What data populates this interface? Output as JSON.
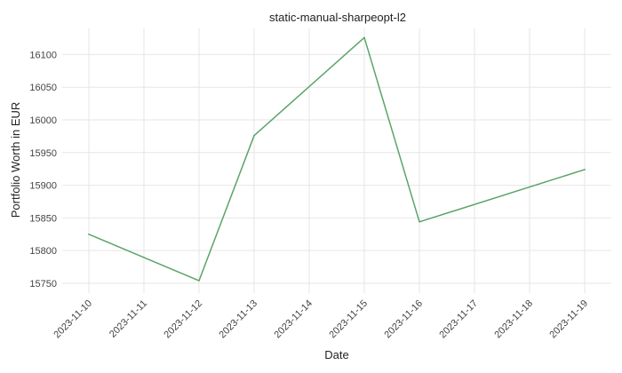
{
  "chart_data": {
    "type": "line",
    "title": "static-manual-sharpeopt-l2",
    "xlabel": "Date",
    "ylabel": "Portfolio Worth in EUR",
    "x_ticks": [
      "2023-11-10",
      "2023-11-11",
      "2023-11-12",
      "2023-11-13",
      "2023-11-14",
      "2023-11-15",
      "2023-11-16",
      "2023-11-17",
      "2023-11-18",
      "2023-11-19"
    ],
    "y_ticks": [
      15750,
      15800,
      15850,
      15900,
      15950,
      16000,
      16050,
      16100
    ],
    "ylim": [
      15735,
      16140
    ],
    "grid": true,
    "series": [
      {
        "color": "#5aa469",
        "points": [
          {
            "x": "2023-11-10",
            "y": 15825
          },
          {
            "x": "2023-11-12",
            "y": 15754
          },
          {
            "x": "2023-11-13",
            "y": 15976
          },
          {
            "x": "2023-11-15",
            "y": 16126
          },
          {
            "x": "2023-11-16",
            "y": 15844
          },
          {
            "x": "2023-11-19",
            "y": 15924
          }
        ]
      }
    ]
  }
}
